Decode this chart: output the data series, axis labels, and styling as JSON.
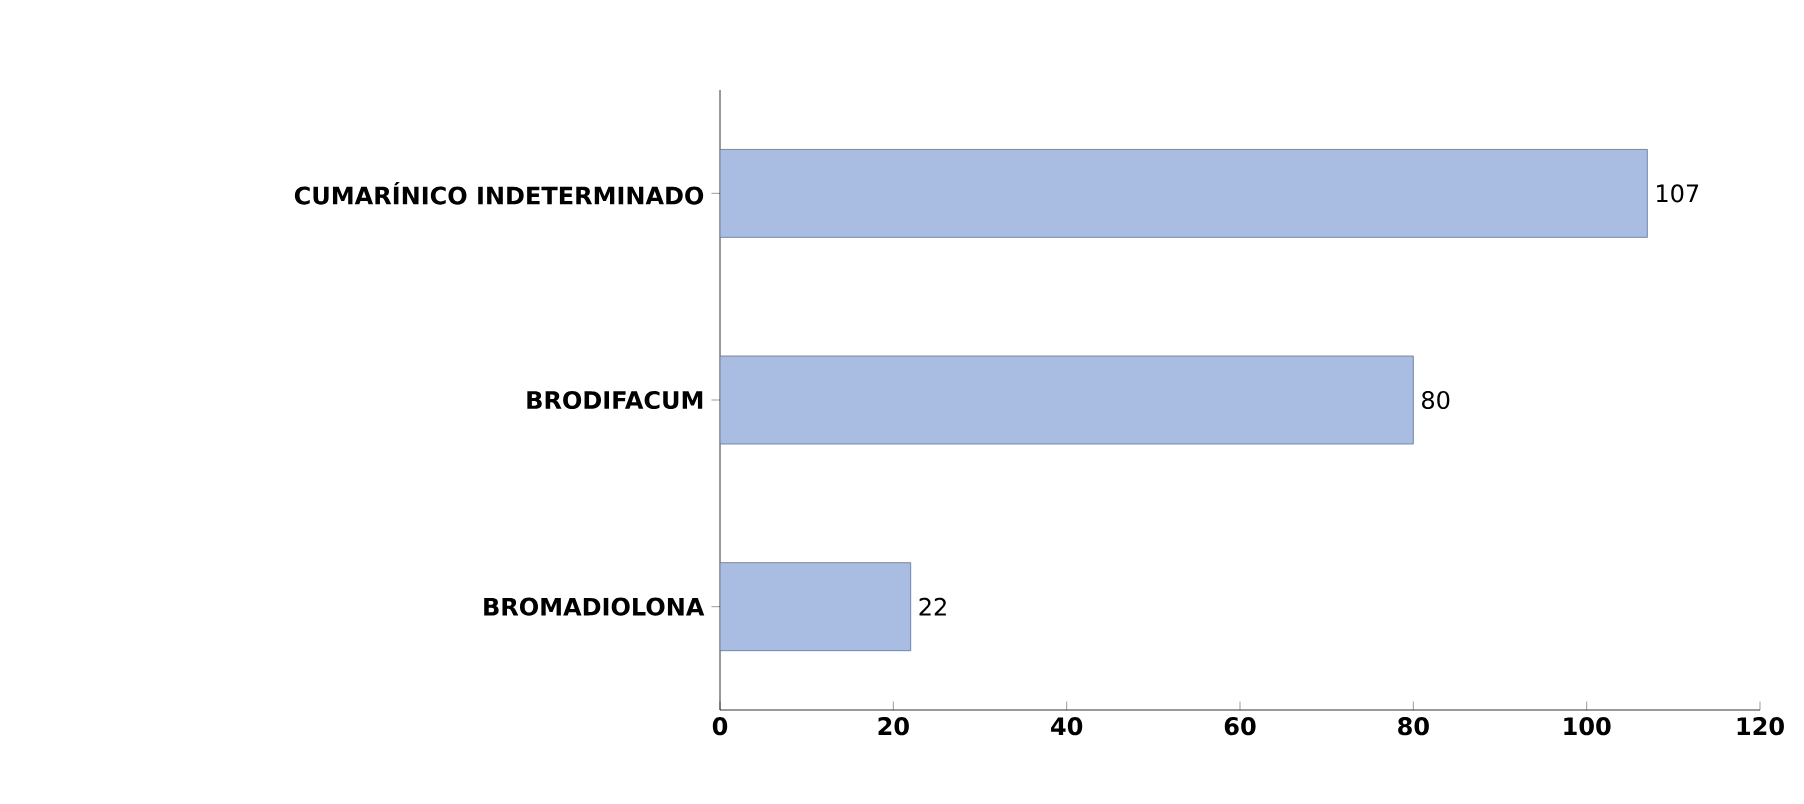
{
  "chart_data": {
    "type": "bar",
    "orientation": "horizontal",
    "categories": [
      "CUMARÍNICO INDETERMINADO",
      "BRODIFACUM",
      "BROMADIOLONA"
    ],
    "values": [
      107,
      80,
      22
    ],
    "color": "#a9bde3",
    "xlim": [
      0,
      120
    ],
    "xticks": [
      0,
      20,
      40,
      60,
      80,
      100,
      120
    ],
    "data_labels": true,
    "grid": false
  }
}
